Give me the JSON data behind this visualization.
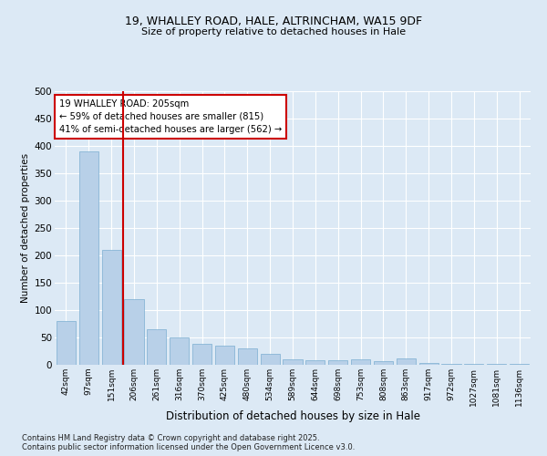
{
  "title1": "19, WHALLEY ROAD, HALE, ALTRINCHAM, WA15 9DF",
  "title2": "Size of property relative to detached houses in Hale",
  "xlabel": "Distribution of detached houses by size in Hale",
  "ylabel": "Number of detached properties",
  "categories": [
    "42sqm",
    "97sqm",
    "151sqm",
    "206sqm",
    "261sqm",
    "316sqm",
    "370sqm",
    "425sqm",
    "480sqm",
    "534sqm",
    "589sqm",
    "644sqm",
    "698sqm",
    "753sqm",
    "808sqm",
    "863sqm",
    "917sqm",
    "972sqm",
    "1027sqm",
    "1081sqm",
    "1136sqm"
  ],
  "values": [
    80,
    390,
    210,
    120,
    65,
    50,
    38,
    35,
    30,
    20,
    10,
    9,
    9,
    10,
    7,
    12,
    3,
    2,
    2,
    1,
    1
  ],
  "bar_color": "#b8d0e8",
  "bar_edge_color": "#7aaed0",
  "reference_line_index": 3,
  "reference_line_color": "#cc0000",
  "annotation_text": "19 WHALLEY ROAD: 205sqm\n← 59% of detached houses are smaller (815)\n41% of semi-detached houses are larger (562) →",
  "annotation_box_color": "#ffffff",
  "annotation_box_edge_color": "#cc0000",
  "footer1": "Contains HM Land Registry data © Crown copyright and database right 2025.",
  "footer2": "Contains public sector information licensed under the Open Government Licence v3.0.",
  "bg_color": "#dce9f5",
  "plot_bg_color": "#dce9f5",
  "ylim": [
    0,
    500
  ],
  "yticks": [
    0,
    50,
    100,
    150,
    200,
    250,
    300,
    350,
    400,
    450,
    500
  ]
}
